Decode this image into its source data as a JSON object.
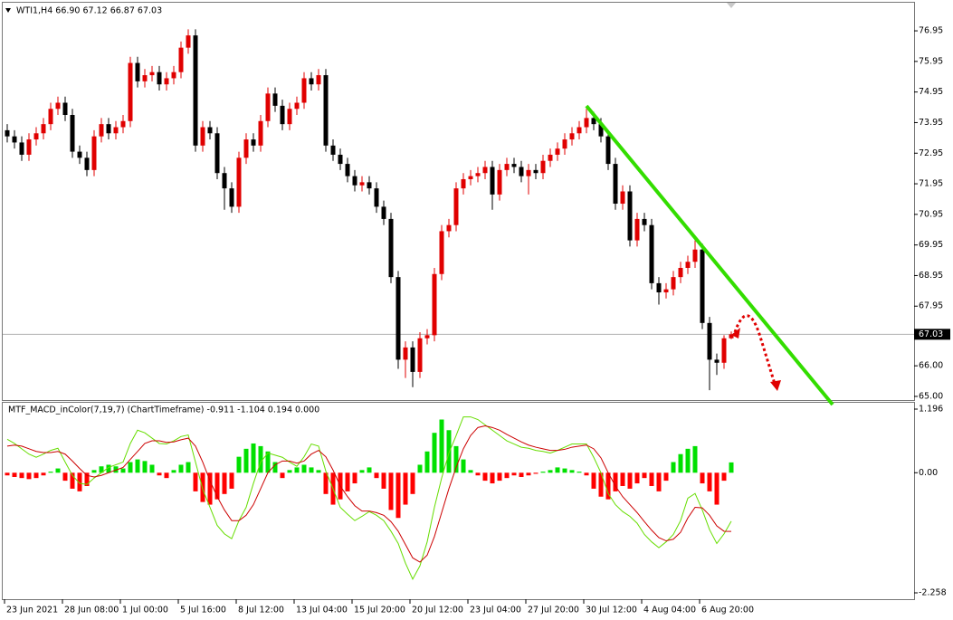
{
  "chart_data": [
    {
      "type": "candlestick",
      "title": "WTI1,H4  66.90 67.12 66.87 67.03",
      "up_color": "#e00000",
      "down_color": "#000000",
      "open": [
        73.7,
        73.5,
        73.3,
        72.9,
        73.4,
        73.6,
        73.9,
        74.4,
        74.6,
        74.2,
        73.0,
        72.8,
        72.4,
        73.5,
        73.9,
        73.6,
        73.8,
        74.0,
        75.9,
        75.3,
        75.5,
        75.6,
        75.2,
        75.4,
        75.6,
        76.4,
        76.8,
        73.2,
        73.8,
        73.6,
        72.3,
        71.8,
        71.2,
        72.8,
        73.4,
        73.2,
        74.0,
        74.9,
        74.5,
        73.9,
        74.4,
        74.6,
        75.4,
        75.2,
        75.5,
        73.2,
        72.9,
        72.6,
        72.2,
        71.9,
        72.0,
        71.8,
        71.2,
        70.8,
        68.9,
        66.2,
        66.6,
        65.8,
        66.9,
        67.0,
        69.0,
        70.4,
        70.6,
        71.8,
        72.1,
        72.2,
        72.3,
        72.5,
        71.6,
        72.4,
        72.6,
        72.5,
        72.2,
        72.4,
        72.3,
        72.7,
        72.9,
        73.1,
        73.4,
        73.6,
        73.8,
        74.1,
        73.9,
        73.5,
        72.6,
        71.3,
        71.7,
        70.1,
        70.8,
        70.6,
        68.7,
        68.4,
        68.5,
        68.9,
        69.2,
        69.4,
        69.8,
        67.4,
        66.2,
        66.1,
        66.9
      ],
      "high": [
        73.9,
        73.7,
        73.5,
        73.6,
        73.8,
        74.1,
        74.6,
        74.8,
        74.8,
        74.4,
        73.2,
        73.0,
        73.7,
        74.1,
        74.1,
        74.0,
        74.2,
        76.1,
        76.1,
        75.7,
        75.8,
        75.8,
        75.6,
        75.8,
        76.6,
        77.0,
        77.0,
        74.0,
        74.0,
        73.8,
        72.5,
        72.0,
        73.0,
        73.6,
        73.6,
        74.2,
        75.1,
        75.1,
        74.7,
        74.6,
        74.8,
        75.6,
        75.6,
        75.7,
        75.7,
        73.4,
        73.1,
        72.8,
        72.4,
        72.2,
        72.2,
        72.0,
        71.4,
        71.0,
        69.1,
        66.8,
        66.8,
        67.1,
        67.2,
        69.2,
        70.6,
        70.8,
        72.0,
        72.3,
        72.4,
        72.5,
        72.7,
        72.7,
        72.6,
        72.8,
        72.8,
        72.7,
        72.6,
        72.6,
        72.9,
        73.1,
        73.3,
        73.6,
        73.8,
        74.0,
        74.4,
        74.3,
        74.1,
        73.7,
        72.8,
        71.9,
        71.9,
        71.0,
        71.0,
        70.8,
        68.9,
        68.7,
        69.1,
        69.4,
        69.6,
        70.1,
        70.0,
        67.6,
        66.4,
        67.0,
        67.12
      ],
      "low": [
        73.3,
        73.1,
        72.7,
        72.7,
        73.2,
        73.4,
        73.7,
        74.2,
        74.0,
        72.8,
        72.6,
        72.2,
        72.2,
        73.3,
        73.4,
        73.4,
        73.6,
        73.8,
        75.1,
        75.1,
        75.3,
        75.0,
        75.0,
        75.2,
        75.4,
        76.2,
        73.0,
        73.0,
        73.4,
        72.1,
        71.1,
        71.0,
        71.0,
        72.6,
        73.0,
        73.0,
        73.8,
        74.3,
        73.7,
        73.7,
        74.2,
        74.4,
        75.0,
        75.0,
        73.0,
        72.7,
        72.4,
        72.0,
        71.7,
        71.7,
        71.6,
        71.0,
        70.6,
        68.7,
        65.9,
        65.6,
        65.3,
        65.6,
        66.7,
        66.8,
        68.8,
        70.2,
        70.4,
        71.6,
        71.9,
        72.0,
        72.1,
        71.1,
        71.4,
        72.2,
        72.3,
        72.0,
        71.6,
        72.1,
        72.1,
        72.5,
        72.7,
        72.9,
        73.2,
        73.4,
        73.6,
        73.7,
        73.3,
        72.4,
        71.1,
        71.1,
        69.9,
        69.9,
        70.4,
        68.5,
        68.0,
        68.2,
        68.3,
        68.7,
        69.0,
        69.2,
        67.2,
        65.2,
        65.7,
        65.9,
        66.87
      ],
      "close": [
        73.5,
        73.3,
        72.9,
        73.4,
        73.6,
        73.9,
        74.4,
        74.6,
        74.2,
        73.0,
        72.8,
        72.4,
        73.5,
        73.9,
        73.6,
        73.8,
        74.0,
        75.9,
        75.3,
        75.5,
        75.6,
        75.2,
        75.4,
        75.6,
        76.4,
        76.8,
        73.2,
        73.8,
        73.6,
        72.3,
        71.8,
        71.2,
        72.8,
        73.4,
        73.2,
        74.0,
        74.9,
        74.5,
        73.9,
        74.4,
        74.6,
        75.4,
        75.2,
        75.5,
        73.2,
        72.9,
        72.6,
        72.2,
        71.9,
        72.0,
        71.8,
        71.2,
        70.8,
        68.9,
        66.2,
        66.6,
        65.8,
        66.9,
        67.0,
        69.0,
        70.4,
        70.6,
        71.8,
        72.1,
        72.2,
        72.3,
        72.5,
        71.6,
        72.4,
        72.6,
        72.5,
        72.2,
        72.4,
        72.3,
        72.7,
        72.9,
        73.1,
        73.4,
        73.6,
        73.8,
        74.1,
        73.9,
        73.5,
        72.6,
        71.3,
        71.7,
        70.1,
        70.8,
        70.6,
        68.7,
        68.4,
        68.5,
        68.9,
        69.2,
        69.4,
        69.8,
        67.4,
        66.2,
        66.1,
        66.9,
        67.03
      ],
      "ylim": [
        64.88,
        77.81
      ],
      "yticks": [
        76.95,
        75.95,
        74.95,
        73.95,
        72.95,
        71.95,
        70.95,
        69.95,
        68.95,
        67.95,
        {
          "value": 66,
          "label": "66.00"
        },
        {
          "value": 65,
          "label": "65.00"
        }
      ],
      "current_price": 67.03,
      "xticks": [
        {
          "value": 0,
          "label": "23 Jun 2021"
        },
        {
          "value": 8,
          "label": "28 Jun 08:00"
        },
        {
          "value": 16,
          "label": "1 Jul 00:00"
        },
        {
          "value": 24,
          "label": "5 Jul 16:00"
        },
        {
          "value": 32,
          "label": "8 Jul 12:00"
        },
        {
          "value": 40,
          "label": "13 Jul 04:00"
        },
        {
          "value": 48,
          "label": "15 Jul 20:00"
        },
        {
          "value": 56,
          "label": "20 Jul 12:00"
        },
        {
          "value": 64,
          "label": "23 Jul 04:00"
        },
        {
          "value": 72,
          "label": "27 Jul 20:00"
        },
        {
          "value": 80,
          "label": "30 Jul 12:00"
        },
        {
          "value": 88,
          "label": "4 Aug 04:00"
        },
        {
          "value": 96,
          "label": "6 Aug 20:00"
        }
      ]
    },
    {
      "type": "macd",
      "title": "MTF_MACD_inColor(7,19,7) (ChartTimeframe) -0.911 -1.104 0.194 0.000",
      "positive_color": "#00e000",
      "negative_color": "#ff0000",
      "histogram": [
        -0.05,
        -0.08,
        -0.1,
        -0.12,
        -0.1,
        -0.05,
        0.02,
        0.08,
        -0.15,
        -0.3,
        -0.35,
        -0.25,
        0.05,
        0.12,
        0.15,
        0.12,
        0.08,
        0.2,
        0.25,
        0.22,
        0.15,
        -0.05,
        -0.1,
        0.05,
        0.15,
        0.2,
        -0.35,
        -0.55,
        -0.6,
        -0.5,
        -0.4,
        -0.3,
        0.3,
        0.45,
        0.55,
        0.5,
        0.4,
        0.2,
        -0.1,
        0.05,
        0.1,
        0.15,
        0.1,
        0.05,
        -0.4,
        -0.6,
        -0.5,
        -0.35,
        -0.2,
        0.05,
        0.1,
        -0.1,
        -0.3,
        -0.7,
        -0.85,
        -0.6,
        -0.4,
        0.15,
        0.4,
        0.75,
        1.0,
        0.8,
        0.5,
        0.25,
        0.05,
        -0.05,
        -0.15,
        -0.2,
        -0.15,
        -0.1,
        -0.05,
        -0.08,
        -0.05,
        -0.02,
        0.02,
        0.05,
        0.1,
        0.08,
        0.05,
        0.02,
        -0.05,
        -0.3,
        -0.45,
        -0.5,
        -0.35,
        -0.25,
        -0.3,
        -0.2,
        -0.1,
        -0.25,
        -0.35,
        -0.15,
        0.2,
        0.35,
        0.45,
        0.5,
        -0.2,
        -0.35,
        -0.6,
        -0.15,
        0.194
      ],
      "series": [
        {
          "color": "#66dd00",
          "values": [
            0.63,
            0.55,
            0.45,
            0.35,
            0.29,
            0.35,
            0.42,
            0.46,
            0.2,
            -0.05,
            -0.2,
            -0.22,
            -0.1,
            0.0,
            0.1,
            0.15,
            0.2,
            0.55,
            0.8,
            0.75,
            0.65,
            0.55,
            0.54,
            0.6,
            0.68,
            0.71,
            0.2,
            -0.31,
            -0.65,
            -0.99,
            -1.15,
            -1.24,
            -0.9,
            -0.65,
            -0.2,
            0.2,
            0.37,
            0.33,
            0.29,
            0.2,
            0.12,
            0.3,
            0.54,
            0.5,
            0.03,
            -0.3,
            -0.65,
            -0.78,
            -0.9,
            -0.82,
            -0.73,
            -0.8,
            -0.9,
            -1.1,
            -1.33,
            -1.7,
            -2.0,
            -1.75,
            -1.3,
            -0.65,
            -0.1,
            0.37,
            0.7,
            1.05,
            1.05,
            1.0,
            0.9,
            0.8,
            0.7,
            0.6,
            0.54,
            0.48,
            0.46,
            0.42,
            0.4,
            0.37,
            0.42,
            0.48,
            0.54,
            0.54,
            0.54,
            0.29,
            0.0,
            -0.39,
            -0.6,
            -0.73,
            -0.82,
            -0.95,
            -1.16,
            -1.3,
            -1.41,
            -1.3,
            -1.16,
            -0.9,
            -0.48,
            -0.39,
            -0.7,
            -1.07,
            -1.33,
            -1.15,
            -0.911
          ]
        },
        {
          "color": "#cc0000",
          "values": [
            0.5,
            0.52,
            0.5,
            0.45,
            0.4,
            0.38,
            0.38,
            0.4,
            0.35,
            0.22,
            0.08,
            -0.05,
            -0.08,
            -0.05,
            0.0,
            0.05,
            0.1,
            0.25,
            0.4,
            0.55,
            0.6,
            0.6,
            0.57,
            0.58,
            0.62,
            0.65,
            0.5,
            0.2,
            -0.15,
            -0.45,
            -0.7,
            -0.9,
            -0.9,
            -0.8,
            -0.6,
            -0.3,
            0.0,
            0.15,
            0.22,
            0.22,
            0.18,
            0.22,
            0.35,
            0.42,
            0.3,
            0.05,
            -0.25,
            -0.45,
            -0.62,
            -0.72,
            -0.72,
            -0.75,
            -0.8,
            -0.92,
            -1.1,
            -1.35,
            -1.6,
            -1.68,
            -1.55,
            -1.2,
            -0.75,
            -0.3,
            0.1,
            0.45,
            0.7,
            0.85,
            0.88,
            0.85,
            0.8,
            0.72,
            0.65,
            0.58,
            0.52,
            0.48,
            0.45,
            0.42,
            0.42,
            0.44,
            0.48,
            0.5,
            0.52,
            0.45,
            0.28,
            0.0,
            -0.25,
            -0.45,
            -0.6,
            -0.75,
            -0.92,
            -1.08,
            -1.22,
            -1.28,
            -1.25,
            -1.12,
            -0.85,
            -0.65,
            -0.66,
            -0.8,
            -1.0,
            -1.1,
            -1.104
          ]
        }
      ],
      "ylim": [
        -2.377,
        1.315
      ],
      "yticks": [
        1.196,
        {
          "value": 0,
          "label": "0.00"
        },
        -2.258
      ]
    }
  ]
}
